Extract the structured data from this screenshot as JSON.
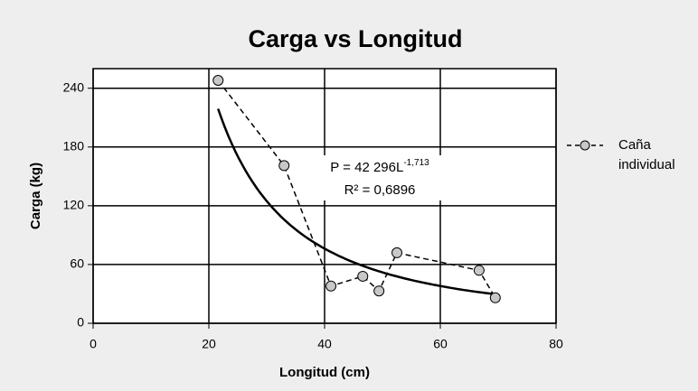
{
  "chart_data": {
    "type": "scatter",
    "title": "Carga vs Longitud",
    "xlabel": "Longitud (cm)",
    "ylabel": "Carga (kg)",
    "xlim": [
      0,
      80
    ],
    "xticks": [
      0,
      20,
      40,
      60,
      80
    ],
    "ylim": [
      0,
      260
    ],
    "yticks": [
      0,
      60,
      120,
      180,
      240
    ],
    "grid": true,
    "legend": "right",
    "series": [
      {
        "name": "Caña individual",
        "color": "#c8c8c8",
        "x": [
          21.6,
          33,
          41.1,
          46.6,
          49.4,
          52.5,
          66.7,
          69.5
        ],
        "values": [
          248,
          161,
          38,
          48,
          33,
          72,
          54,
          26
        ]
      }
    ],
    "trendline": {
      "equation": "P = 42 296L",
      "exponent": "-1,713",
      "r2": "R² = 0,6896",
      "a": 42296,
      "b": -1.713,
      "xrange": [
        21.6,
        69.5
      ]
    }
  }
}
